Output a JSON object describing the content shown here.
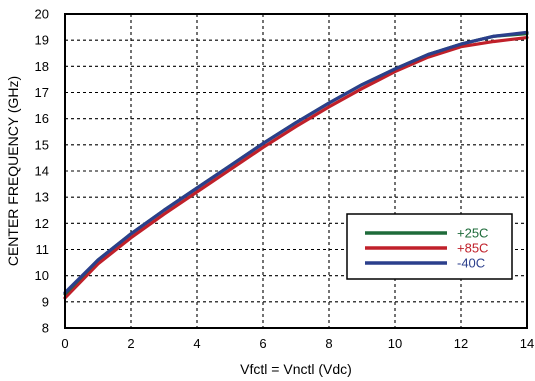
{
  "chart_data": {
    "type": "line",
    "title": "",
    "xlabel": "Vfctl = Vnctl (Vdc)",
    "ylabel": "CENTER FREQUENCY (GHz)",
    "xlim": [
      0,
      14
    ],
    "ylim": [
      8,
      20
    ],
    "x_ticks": [
      0,
      2,
      4,
      6,
      8,
      10,
      12,
      14
    ],
    "y_ticks": [
      8,
      9,
      10,
      11,
      12,
      13,
      14,
      15,
      16,
      17,
      18,
      19,
      20
    ],
    "grid": true,
    "legend_position": "center-right",
    "x": [
      0,
      1,
      2,
      3,
      4,
      5,
      6,
      7,
      8,
      9,
      10,
      11,
      12,
      13,
      14
    ],
    "series": [
      {
        "name": "+25C",
        "color": "#1e6b3a",
        "values": [
          9.3,
          10.6,
          11.6,
          12.5,
          13.35,
          14.2,
          15.05,
          15.85,
          16.6,
          17.3,
          17.9,
          18.45,
          18.85,
          19.15,
          19.25
        ]
      },
      {
        "name": "+85C",
        "color": "#c0202a",
        "values": [
          9.15,
          10.45,
          11.45,
          12.35,
          13.2,
          14.05,
          14.9,
          15.7,
          16.45,
          17.15,
          17.8,
          18.35,
          18.75,
          18.95,
          19.1
        ]
      },
      {
        "name": "-40C",
        "color": "#2b3f8c",
        "values": [
          9.35,
          10.6,
          11.6,
          12.5,
          13.35,
          14.2,
          15.05,
          15.85,
          16.6,
          17.3,
          17.9,
          18.45,
          18.85,
          19.15,
          19.3
        ]
      }
    ]
  }
}
